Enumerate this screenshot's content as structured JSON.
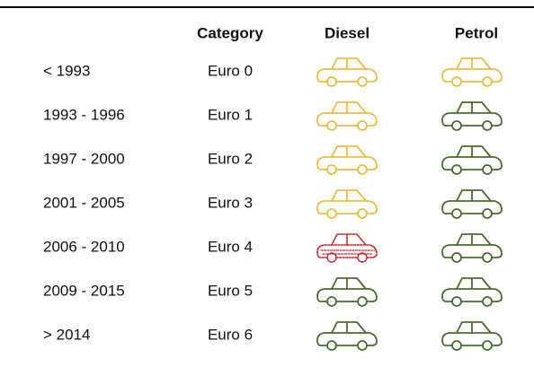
{
  "table": {
    "header": [
      "Category",
      "Diesel",
      "Petrol"
    ],
    "rows": [
      {
        "years": "< 1993",
        "category": "Euro 0",
        "diesel": {
          "color": "#e9bd45"
        },
        "petrol": {
          "color": "#e9bd45"
        }
      },
      {
        "years": "1993 - 1996",
        "category": "Euro 1",
        "diesel": {
          "color": "#e9bd45"
        },
        "petrol": {
          "color": "#4a6b30"
        }
      },
      {
        "years": "1997 - 2000",
        "category": "Euro 2",
        "diesel": {
          "color": "#e9bd45"
        },
        "petrol": {
          "color": "#4a6b30"
        }
      },
      {
        "years": "2001 - 2005",
        "category": "Euro 3",
        "diesel": {
          "color": "#e9bd45"
        },
        "petrol": {
          "color": "#4a6b30"
        }
      },
      {
        "years": "2006 - 2010",
        "category": "Euro 4",
        "diesel": {
          "color": "#c0272d",
          "dashed": true
        },
        "petrol": {
          "color": "#4a6b30"
        }
      },
      {
        "years": "2009 - 2015",
        "category": "Euro 5",
        "diesel": {
          "color": "#4a6b30"
        },
        "petrol": {
          "color": "#4a6b30"
        }
      },
      {
        "years": "> 2014",
        "category": "Euro 6",
        "diesel": {
          "color": "#4a6b30"
        },
        "petrol": {
          "color": "#4a6b30"
        }
      }
    ]
  }
}
